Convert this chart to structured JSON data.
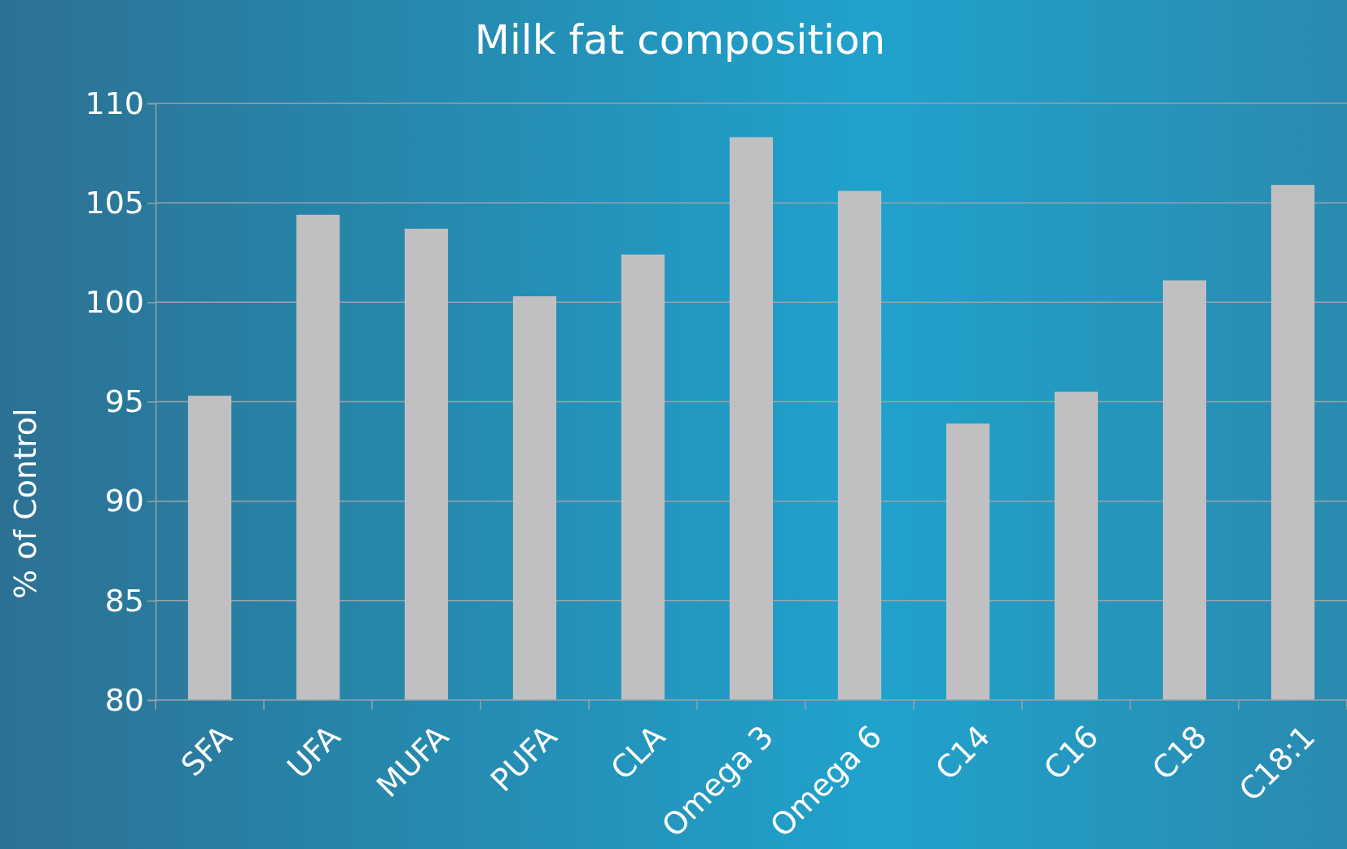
{
  "chart_data": {
    "type": "bar",
    "title": "Milk fat composition",
    "ylabel": "% of Control",
    "categories": [
      "SFA",
      "UFA",
      "MUFA",
      "PUFA",
      "CLA",
      "Omega 3",
      "Omega 6",
      "C14",
      "C16",
      "C18",
      "C18:1"
    ],
    "values": [
      95.3,
      104.4,
      103.7,
      100.3,
      102.4,
      108.3,
      105.6,
      93.9,
      95.5,
      101.1,
      105.9
    ],
    "color": "#c0c0c2",
    "ylim": [
      80,
      110
    ],
    "yticks": [
      80,
      85,
      90,
      95,
      100,
      105,
      110
    ],
    "grid": "y"
  }
}
